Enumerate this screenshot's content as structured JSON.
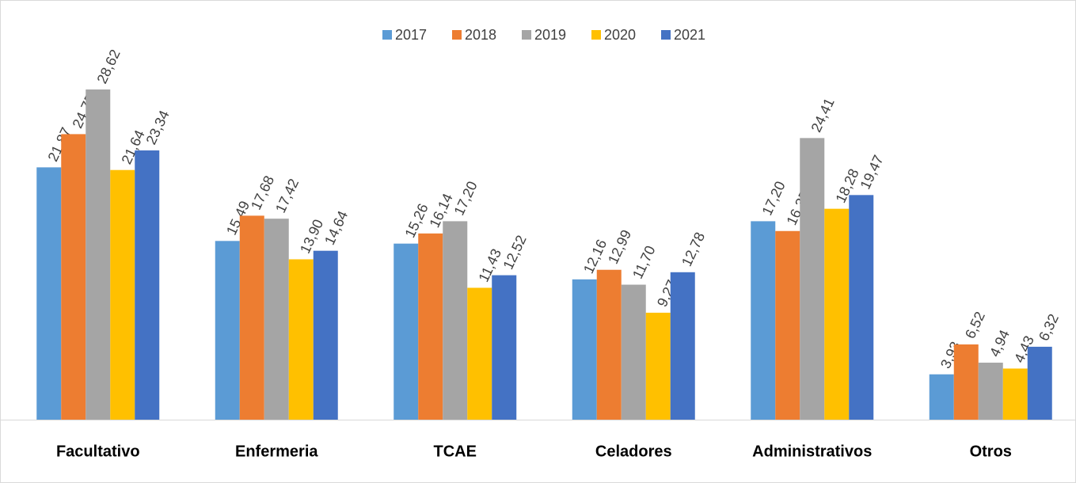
{
  "chart_data": {
    "type": "bar",
    "categories": [
      "Facultativo",
      "Enfermeria",
      "TCAE",
      "Celadores",
      "Administrativos",
      "Otros"
    ],
    "series": [
      {
        "name": "2017",
        "color": "#5b9bd5",
        "values": [
          21.87,
          15.49,
          15.26,
          12.16,
          17.2,
          3.93
        ],
        "value_labels": [
          "21,87",
          "15,49",
          "15,26",
          "12,16",
          "17,20",
          "3,93"
        ]
      },
      {
        "name": "2018",
        "color": "#ed7d31",
        "values": [
          24.75,
          17.68,
          16.14,
          12.99,
          16.35,
          6.52
        ],
        "value_labels": [
          "24,75",
          "17,68",
          "16,14",
          "12,99",
          "16,35",
          "6,52"
        ]
      },
      {
        "name": "2019",
        "color": "#a5a5a5",
        "values": [
          28.62,
          17.42,
          17.2,
          11.7,
          24.41,
          4.94
        ],
        "value_labels": [
          "28,62",
          "17,42",
          "17,20",
          "11,70",
          "24,41",
          "4,94"
        ]
      },
      {
        "name": "2020",
        "color": "#ffc000",
        "values": [
          21.64,
          13.9,
          11.43,
          9.27,
          18.28,
          4.43
        ],
        "value_labels": [
          "21,64",
          "13,90",
          "11,43",
          "9,27",
          "18,28",
          "4,43"
        ]
      },
      {
        "name": "2021",
        "color": "#4472c4",
        "values": [
          23.34,
          14.64,
          12.52,
          12.78,
          19.47,
          6.32
        ],
        "value_labels": [
          "23,34",
          "14,64",
          "12,52",
          "12,78",
          "19,47",
          "6,32"
        ]
      }
    ],
    "legend": "top"
  }
}
